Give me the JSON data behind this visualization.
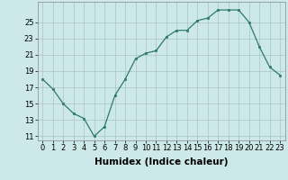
{
  "x": [
    0,
    1,
    2,
    3,
    4,
    5,
    6,
    7,
    8,
    9,
    10,
    11,
    12,
    13,
    14,
    15,
    16,
    17,
    18,
    19,
    20,
    21,
    22,
    23
  ],
  "y": [
    18.0,
    16.8,
    15.0,
    13.8,
    13.2,
    11.0,
    12.2,
    16.0,
    18.0,
    20.5,
    21.2,
    21.5,
    23.2,
    24.0,
    24.0,
    25.2,
    25.5,
    26.5,
    26.5,
    26.5,
    25.0,
    22.0,
    19.5,
    18.5
  ],
  "xlabel": "Humidex (Indice chaleur)",
  "ylim": [
    10.5,
    27.5
  ],
  "xlim": [
    -0.5,
    23.5
  ],
  "yticks": [
    11,
    13,
    15,
    17,
    19,
    21,
    23,
    25
  ],
  "xticks": [
    0,
    1,
    2,
    3,
    4,
    5,
    6,
    7,
    8,
    9,
    10,
    11,
    12,
    13,
    14,
    15,
    16,
    17,
    18,
    19,
    20,
    21,
    22,
    23
  ],
  "line_color": "#2d7a6a",
  "marker_color": "#2d7a6a",
  "bg_color": "#cce8e8",
  "grid_color": "#b0c8c8",
  "xlabel_fontsize": 7.5,
  "tick_fontsize": 6.0
}
